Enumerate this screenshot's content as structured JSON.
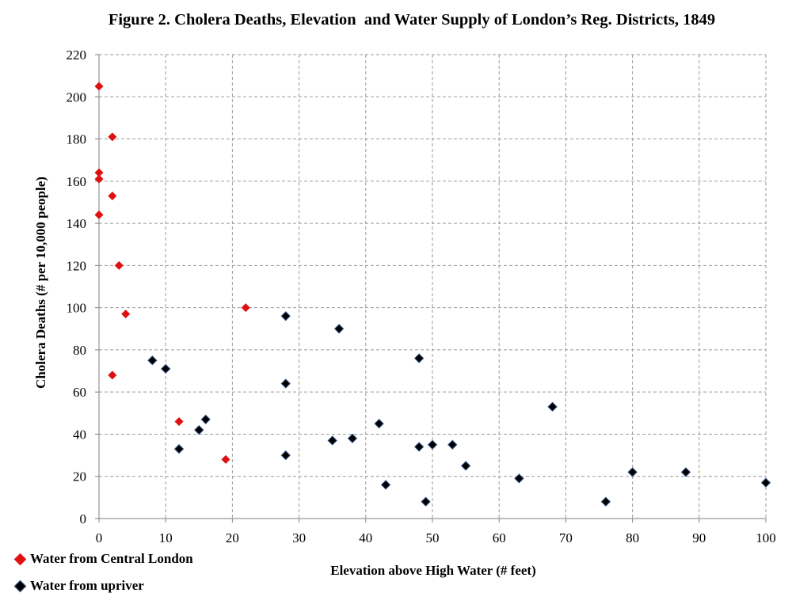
{
  "chart_data": {
    "type": "scatter",
    "title": "Figure 2. Cholera Deaths, Elevation  and Water Supply of London’s Reg. Districts, 1849",
    "xlabel": "Elevation above High Water (# feet)",
    "ylabel": "Cholera Deaths (# per 10,000 people)",
    "xlim": [
      0,
      100
    ],
    "ylim": [
      0,
      220
    ],
    "x_ticks": [
      "0",
      "10",
      "20",
      "30",
      "40",
      "50",
      "60",
      "70",
      "80",
      "90",
      "100"
    ],
    "y_ticks": [
      "0",
      "20",
      "40",
      "60",
      "80",
      "100",
      "120",
      "140",
      "160",
      "180",
      "200",
      "220"
    ],
    "grid": true,
    "grid_style": "dashed",
    "legend_position": "bottom-left",
    "series": [
      {
        "name": "Water from Central London",
        "color": "#e01010",
        "marker": "diamond",
        "points": [
          [
            0,
            205
          ],
          [
            2,
            181
          ],
          [
            0,
            164
          ],
          [
            0,
            161
          ],
          [
            2,
            153
          ],
          [
            0,
            144
          ],
          [
            3,
            120
          ],
          [
            4,
            97
          ],
          [
            22,
            100
          ],
          [
            2,
            68
          ],
          [
            12,
            46
          ],
          [
            19,
            28
          ]
        ]
      },
      {
        "name": "Water from upriver",
        "color": "#000000",
        "marker": "diamond",
        "points": [
          [
            8,
            75
          ],
          [
            10,
            71
          ],
          [
            12,
            33
          ],
          [
            15,
            42
          ],
          [
            16,
            47
          ],
          [
            28,
            96
          ],
          [
            28,
            64
          ],
          [
            28,
            30
          ],
          [
            35,
            37
          ],
          [
            36,
            90
          ],
          [
            38,
            38
          ],
          [
            42,
            45
          ],
          [
            43,
            16
          ],
          [
            48,
            76
          ],
          [
            48,
            34
          ],
          [
            49,
            8
          ],
          [
            50,
            35
          ],
          [
            53,
            35
          ],
          [
            55,
            25
          ],
          [
            63,
            19
          ],
          [
            68,
            53
          ],
          [
            76,
            8
          ],
          [
            80,
            22
          ],
          [
            88,
            22
          ],
          [
            100,
            17
          ]
        ]
      }
    ]
  }
}
